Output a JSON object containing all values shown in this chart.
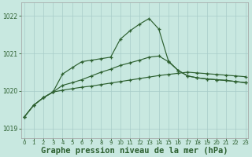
{
  "background_color": "#c8e8e0",
  "grid_color": "#a8ccc8",
  "line_color": "#2d6030",
  "xlabel": "Graphe pression niveau de la mer (hPa)",
  "xlabel_fontsize": 7.5,
  "ylim": [
    1018.75,
    1022.35
  ],
  "xlim": [
    -0.3,
    23.3
  ],
  "yticks": [
    1019,
    1020,
    1021,
    1022
  ],
  "xticks": [
    0,
    1,
    2,
    3,
    4,
    5,
    6,
    7,
    8,
    9,
    10,
    11,
    12,
    13,
    14,
    15,
    16,
    17,
    18,
    19,
    20,
    21,
    22,
    23
  ],
  "line1": [
    1019.3,
    1019.62,
    1019.82,
    1019.97,
    1020.02,
    1020.06,
    1020.1,
    1020.13,
    1020.17,
    1020.21,
    1020.25,
    1020.29,
    1020.33,
    1020.37,
    1020.41,
    1020.44,
    1020.47,
    1020.5,
    1020.48,
    1020.46,
    1020.44,
    1020.42,
    1020.4,
    1020.38
  ],
  "line2": [
    1019.3,
    1019.62,
    1019.82,
    1019.97,
    1020.15,
    1020.22,
    1020.3,
    1020.4,
    1020.5,
    1020.58,
    1020.68,
    1020.75,
    1020.82,
    1020.9,
    1020.93,
    1020.78,
    1020.55,
    1020.4,
    1020.35,
    1020.32,
    1020.3,
    1020.28,
    1020.25,
    1020.22
  ],
  "line3": [
    1019.3,
    1019.62,
    1019.82,
    1019.97,
    1020.45,
    1020.62,
    1020.78,
    1020.82,
    1020.86,
    1020.9,
    1021.38,
    1021.6,
    1021.78,
    1021.93,
    1021.65,
    1020.8,
    1020.55,
    1020.4,
    1020.35,
    1020.32,
    1020.3,
    1020.28,
    1020.25,
    1020.22
  ],
  "marker": "+",
  "markersize": 3.5,
  "markeredgewidth": 0.9,
  "linewidth": 0.85
}
